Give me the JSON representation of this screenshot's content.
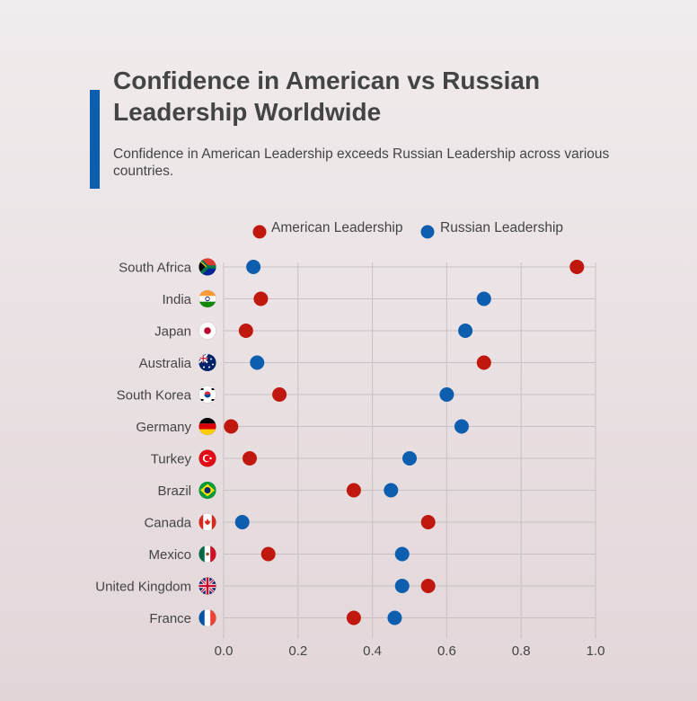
{
  "title": "Confidence in American vs Russian Leadership Worldwide",
  "subtitle": "Confidence in American Leadership exceeds Russian Leadership across various countries.",
  "colors": {
    "american": "#c0180f",
    "russian": "#0d5eaf",
    "accent": "#0d5eaf",
    "grid": "#c8c0c3"
  },
  "chart_data": {
    "type": "scatter",
    "categories": [
      "South Africa",
      "India",
      "Japan",
      "Australia",
      "South Korea",
      "Germany",
      "Turkey",
      "Brazil",
      "Canada",
      "Mexico",
      "United Kingdom",
      "France"
    ],
    "series": [
      {
        "name": "American Leadership",
        "values": [
          0.95,
          0.1,
          0.06,
          0.7,
          0.15,
          0.02,
          0.07,
          0.35,
          0.55,
          0.12,
          0.55,
          0.35
        ]
      },
      {
        "name": "Russian Leadership",
        "values": [
          0.08,
          0.7,
          0.65,
          0.09,
          0.6,
          0.64,
          0.5,
          0.45,
          0.05,
          0.48,
          0.48,
          0.46
        ]
      }
    ],
    "xlim": [
      0,
      1.0
    ],
    "x_ticks": [
      "0.0",
      "0.2",
      "0.4",
      "0.6",
      "0.8",
      "1.0"
    ],
    "grid": true,
    "legend_position": "top-center",
    "flags": [
      "south-africa-flag-icon",
      "india-flag-icon",
      "japan-flag-icon",
      "australia-flag-icon",
      "south-korea-flag-icon",
      "germany-flag-icon",
      "turkey-flag-icon",
      "brazil-flag-icon",
      "canada-flag-icon",
      "mexico-flag-icon",
      "united-kingdom-flag-icon",
      "france-flag-icon"
    ]
  }
}
